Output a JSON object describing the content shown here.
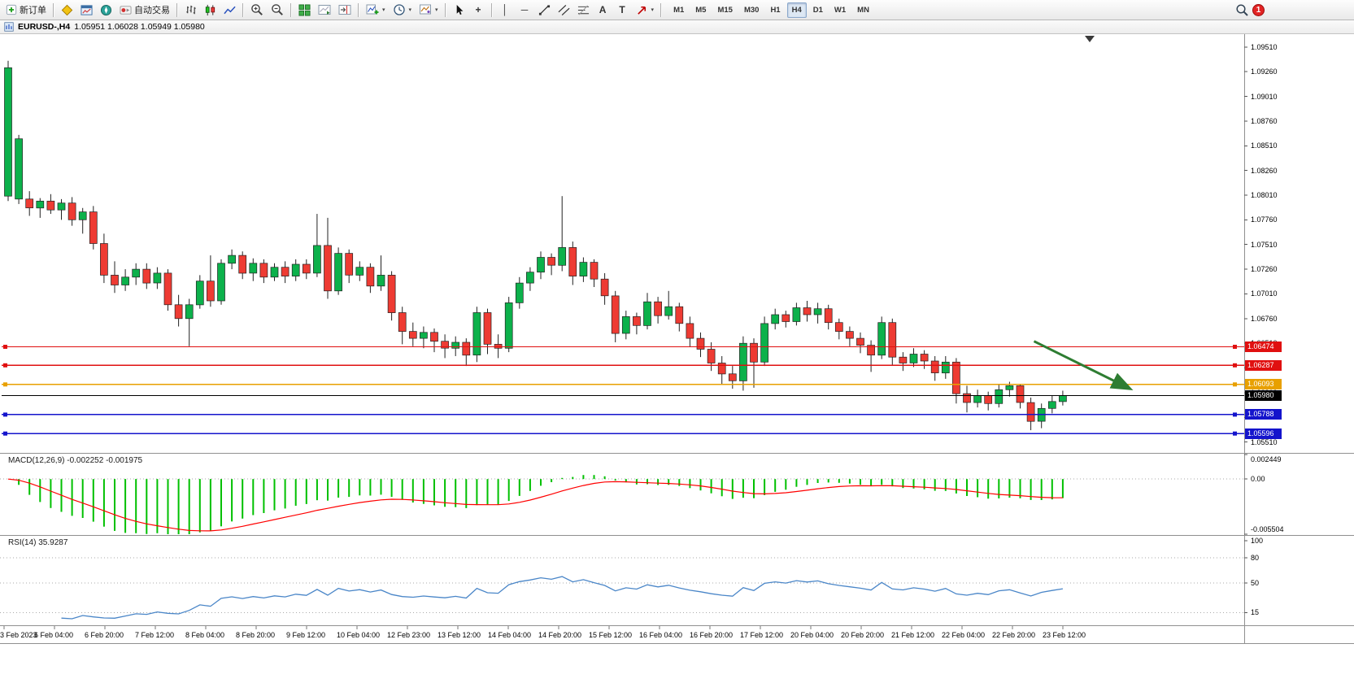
{
  "toolbar": {
    "new_order_label": "新订单",
    "auto_trading_label": "自动交易",
    "timeframes": [
      "M1",
      "M5",
      "M15",
      "M30",
      "H1",
      "H4",
      "D1",
      "W1",
      "MN"
    ],
    "active_timeframe": "H4",
    "notification_count": "1",
    "icon_buttons": [
      "new-order",
      "metaeditor",
      "market-watch",
      "navigator",
      "auto-trading",
      "bar-chart",
      "candlestick-chart",
      "line-chart",
      "zoom-in",
      "zoom-out",
      "tile-windows",
      "auto-scroll",
      "chart-shift",
      "indicators",
      "periods",
      "templates",
      "cursor",
      "crosshair",
      "vertical-line",
      "horizontal-line",
      "trendline",
      "equidistant-channel",
      "fibonacci",
      "text",
      "text-label",
      "arrows",
      "search",
      "notifications"
    ]
  },
  "icons": {
    "caret": "▾",
    "crosshair": "+",
    "vertical_line": "│",
    "horizontal_line": "─",
    "text_tool": "A",
    "label_tool": "T",
    "shift_marker": "▼"
  },
  "window": {
    "title_symbol": "EURUSD-,H4",
    "title_ohlc": "1.05951 1.06028 1.05949 1.05980"
  },
  "chart_data": [
    {
      "type": "candlestick",
      "symbol": "EURUSD-",
      "period": "H4",
      "y_axis": {
        "max": 1.0964,
        "min": 1.054,
        "labels": [
          "1.09510",
          "1.09260",
          "1.09010",
          "1.08760",
          "1.08510",
          "1.08260",
          "1.08010",
          "1.07760",
          "1.07510",
          "1.07260",
          "1.07010",
          "1.06760",
          "1.06510",
          "1.06260",
          "1.06010",
          "1.05760",
          "1.05510"
        ]
      },
      "x_labels": [
        "3 Feb 2023",
        "6 Feb 04:00",
        "6 Feb 20:00",
        "7 Feb 12:00",
        "8 Feb 04:00",
        "8 Feb 20:00",
        "9 Feb 12:00",
        "10 Feb 04:00",
        "12 Feb 23:00",
        "13 Feb 12:00",
        "14 Feb 04:00",
        "14 Feb 20:00",
        "15 Feb 12:00",
        "16 Feb 04:00",
        "16 Feb 20:00",
        "17 Feb 12:00",
        "20 Feb 04:00",
        "20 Feb 20:00",
        "21 Feb 12:00",
        "22 Feb 04:00",
        "22 Feb 20:00",
        "23 Feb 12:00"
      ],
      "candles": [
        [
          1.08,
          1.0937,
          1.0795,
          1.093
        ],
        [
          1.0797,
          1.0862,
          1.0792,
          1.0858
        ],
        [
          1.0797,
          1.0805,
          1.078,
          1.0788
        ],
        [
          1.0788,
          1.0798,
          1.0778,
          1.0795
        ],
        [
          1.0795,
          1.0802,
          1.0782,
          1.0786
        ],
        [
          1.0786,
          1.0797,
          1.0776,
          1.0793
        ],
        [
          1.0793,
          1.0799,
          1.077,
          1.0776
        ],
        [
          1.0776,
          1.0788,
          1.0762,
          1.0784
        ],
        [
          1.0784,
          1.079,
          1.0746,
          1.0752
        ],
        [
          1.0752,
          1.0762,
          1.0712,
          1.072
        ],
        [
          1.072,
          1.0734,
          1.0702,
          1.071
        ],
        [
          1.071,
          1.0726,
          1.0704,
          1.0718
        ],
        [
          1.0718,
          1.0732,
          1.071,
          1.0726
        ],
        [
          1.0726,
          1.0732,
          1.0706,
          1.0712
        ],
        [
          1.0712,
          1.0728,
          1.0706,
          1.0722
        ],
        [
          1.0722,
          1.0726,
          1.0684,
          1.069
        ],
        [
          1.069,
          1.07,
          1.0668,
          1.0676
        ],
        [
          1.0676,
          1.0696,
          1.0648,
          1.069
        ],
        [
          1.069,
          1.072,
          1.0686,
          1.0714
        ],
        [
          1.0714,
          1.074,
          1.0688,
          1.0694
        ],
        [
          1.0694,
          1.0736,
          1.069,
          1.0732
        ],
        [
          1.0732,
          1.0746,
          1.0726,
          1.074
        ],
        [
          1.074,
          1.0744,
          1.0716,
          1.0722
        ],
        [
          1.0722,
          1.0737,
          1.0714,
          1.0732
        ],
        [
          1.0732,
          1.0736,
          1.0712,
          1.0718
        ],
        [
          1.0718,
          1.0732,
          1.0714,
          1.0728
        ],
        [
          1.0728,
          1.0734,
          1.0712,
          1.0719
        ],
        [
          1.0719,
          1.0736,
          1.0714,
          1.0731
        ],
        [
          1.0731,
          1.0736,
          1.0716,
          1.0722
        ],
        [
          1.0722,
          1.0782,
          1.0718,
          1.075
        ],
        [
          1.075,
          1.0778,
          1.0696,
          1.0704
        ],
        [
          1.0704,
          1.0748,
          1.07,
          1.0742
        ],
        [
          1.0742,
          1.0746,
          1.0712,
          1.072
        ],
        [
          1.072,
          1.0734,
          1.0714,
          1.0728
        ],
        [
          1.0728,
          1.0732,
          1.0702,
          1.0709
        ],
        [
          1.0709,
          1.074,
          1.0704,
          1.072
        ],
        [
          1.072,
          1.0724,
          1.0674,
          1.0682
        ],
        [
          1.0682,
          1.0688,
          1.065,
          1.0663
        ],
        [
          1.0663,
          1.0672,
          1.0648,
          1.0656
        ],
        [
          1.0656,
          1.0668,
          1.0646,
          1.0662
        ],
        [
          1.0662,
          1.0666,
          1.0642,
          1.0653
        ],
        [
          1.0653,
          1.066,
          1.0636,
          1.0646
        ],
        [
          1.0646,
          1.0658,
          1.0638,
          1.0652
        ],
        [
          1.0652,
          1.0656,
          1.0628,
          1.0639
        ],
        [
          1.0639,
          1.0688,
          1.0632,
          1.0682
        ],
        [
          1.0682,
          1.0686,
          1.064,
          1.065
        ],
        [
          1.065,
          1.066,
          1.0636,
          1.0646
        ],
        [
          1.0646,
          1.0698,
          1.0642,
          1.0692
        ],
        [
          1.0692,
          1.0718,
          1.0686,
          1.0712
        ],
        [
          1.0712,
          1.0728,
          1.0704,
          1.0723
        ],
        [
          1.0723,
          1.0744,
          1.0716,
          1.0738
        ],
        [
          1.0738,
          1.0742,
          1.072,
          1.073
        ],
        [
          1.073,
          1.08,
          1.0724,
          1.0748
        ],
        [
          1.0748,
          1.0754,
          1.071,
          1.0719
        ],
        [
          1.0719,
          1.0738,
          1.0713,
          1.0733
        ],
        [
          1.0733,
          1.0736,
          1.0708,
          1.0716
        ],
        [
          1.0716,
          1.0722,
          1.069,
          1.0699
        ],
        [
          1.0699,
          1.0704,
          1.0652,
          1.0661
        ],
        [
          1.0661,
          1.0684,
          1.0655,
          1.0678
        ],
        [
          1.0678,
          1.0682,
          1.066,
          1.0669
        ],
        [
          1.0669,
          1.0702,
          1.0665,
          1.0693
        ],
        [
          1.0693,
          1.0698,
          1.0671,
          1.0679
        ],
        [
          1.0679,
          1.0704,
          1.0675,
          1.0688
        ],
        [
          1.0688,
          1.0692,
          1.0663,
          1.0671
        ],
        [
          1.0671,
          1.0678,
          1.0647,
          1.0656
        ],
        [
          1.0656,
          1.0662,
          1.0637,
          1.0645
        ],
        [
          1.0645,
          1.0652,
          1.0623,
          1.0631
        ],
        [
          1.0631,
          1.0638,
          1.0609,
          1.062
        ],
        [
          1.062,
          1.0628,
          1.0605,
          1.0613
        ],
        [
          1.0613,
          1.0658,
          1.0603,
          1.0651
        ],
        [
          1.0651,
          1.0656,
          1.0606,
          1.0632
        ],
        [
          1.0632,
          1.0678,
          1.0628,
          1.0671
        ],
        [
          1.0671,
          1.0686,
          1.0665,
          1.068
        ],
        [
          1.068,
          1.0684,
          1.0667,
          1.0673
        ],
        [
          1.0673,
          1.0692,
          1.0669,
          1.0687
        ],
        [
          1.0687,
          1.0694,
          1.0673,
          1.068
        ],
        [
          1.068,
          1.0692,
          1.0671,
          1.0686
        ],
        [
          1.0686,
          1.069,
          1.0665,
          1.0672
        ],
        [
          1.0672,
          1.0676,
          1.0655,
          1.0663
        ],
        [
          1.0663,
          1.0668,
          1.0648,
          1.0656
        ],
        [
          1.0656,
          1.0662,
          1.0641,
          1.0649
        ],
        [
          1.0649,
          1.0654,
          1.0622,
          1.0639
        ],
        [
          1.0639,
          1.0678,
          1.0635,
          1.0672
        ],
        [
          1.0672,
          1.0676,
          1.0629,
          1.0637
        ],
        [
          1.0637,
          1.0642,
          1.0623,
          1.0631
        ],
        [
          1.0631,
          1.0646,
          1.0627,
          1.064
        ],
        [
          1.064,
          1.0644,
          1.0625,
          1.0633
        ],
        [
          1.0633,
          1.0638,
          1.0613,
          1.0621
        ],
        [
          1.0621,
          1.0638,
          1.0615,
          1.0632
        ],
        [
          1.0632,
          1.0636,
          1.059,
          1.06
        ],
        [
          1.06,
          1.0608,
          1.0581,
          1.0591
        ],
        [
          1.0591,
          1.0604,
          1.0586,
          1.0598
        ],
        [
          1.0598,
          1.0602,
          1.0583,
          1.059
        ],
        [
          1.059,
          1.061,
          1.0586,
          1.0604
        ],
        [
          1.0604,
          1.0612,
          1.0597,
          1.0608
        ],
        [
          1.0608,
          1.061,
          1.0585,
          1.0591
        ],
        [
          1.0591,
          1.0596,
          1.0563,
          1.0572
        ],
        [
          1.0572,
          1.059,
          1.0565,
          1.0585
        ],
        [
          1.0585,
          1.0598,
          1.058,
          1.0592
        ],
        [
          1.0592,
          1.0603,
          1.0588,
          1.0598
        ]
      ],
      "hlines": [
        {
          "price": 1.06474,
          "label": "1.06474",
          "color": "#e01010",
          "kind": "hline"
        },
        {
          "price": 1.06287,
          "label": "1.06287",
          "color": "#e01010",
          "kind": "hline"
        },
        {
          "price": 1.06093,
          "label": "1.06093",
          "color": "#e8a000",
          "kind": "hline"
        },
        {
          "price": 1.0598,
          "label": "1.05980",
          "color": "#000000",
          "kind": "bid"
        },
        {
          "price": 1.05788,
          "label": "1.05788",
          "color": "#1414cc",
          "kind": "hline"
        },
        {
          "price": 1.05596,
          "label": "1.05596",
          "color": "#1414cc",
          "kind": "hline"
        }
      ],
      "annotations": [
        {
          "type": "arrow",
          "from_index": 96.3,
          "from_price": 1.0653,
          "to_index": 105.3,
          "to_price": 1.0605,
          "color": "#2e7d32"
        }
      ]
    },
    {
      "type": "bar",
      "name": "MACD",
      "label": "MACD(12,26,9) -0.002252 -0.001975",
      "params": [
        12,
        26,
        9
      ],
      "derived_from": "candle closes",
      "current_macd": -0.002252,
      "current_signal": -0.001975,
      "y_axis": {
        "max": 0.002449,
        "min": -0.005504,
        "labels": [
          "0.002449",
          "0.00",
          "-0.005504"
        ],
        "label_values": [
          0.002449,
          0,
          -0.005504
        ]
      }
    },
    {
      "type": "line",
      "name": "RSI",
      "label": "RSI(14) 35.9287",
      "params": [
        14
      ],
      "derived_from": "candle closes",
      "current_value": 35.9287,
      "levels": [
        80,
        50,
        15
      ],
      "y_axis": {
        "max": 105,
        "min": 0,
        "labels": [
          "100",
          "80",
          "50",
          "15"
        ],
        "label_values": [
          100,
          80,
          50,
          15
        ]
      }
    }
  ],
  "colors": {
    "candle_up": "#0cb14b",
    "candle_down": "#ee3b33",
    "candle_border": "#222222",
    "wick": "#222222",
    "macd_hist": "#00c000",
    "macd_signal": "#ff0000",
    "rsi_line": "#4a86c8",
    "arrow": "#2e7d32",
    "panel_border": "#909090",
    "level_dotted": "#aaaaaa",
    "axis_text": "#000000"
  }
}
